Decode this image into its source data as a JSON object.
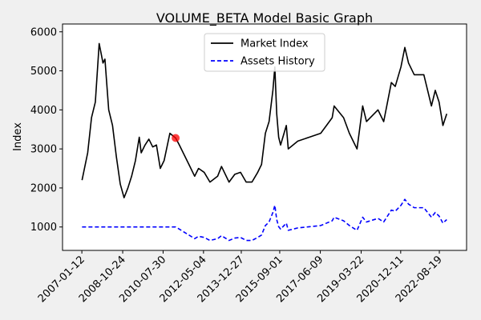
{
  "chart_data": {
    "type": "line",
    "title": "VOLUME_BETA Model Basic Graph",
    "y_label": "Index",
    "x": [
      "2007-01-15",
      "2007-04-15",
      "2007-06-15",
      "2007-08-15",
      "2007-10-15",
      "2007-12-15",
      "2008-01-15",
      "2008-03-15",
      "2008-05-15",
      "2008-07-15",
      "2008-09-15",
      "2008-11-15",
      "2009-01-15",
      "2009-03-15",
      "2009-05-15",
      "2009-07-15",
      "2009-08-15",
      "2009-10-15",
      "2009-12-15",
      "2010-02-15",
      "2010-04-15",
      "2010-06-15",
      "2010-08-15",
      "2010-11-15",
      "2011-02-15",
      "2011-04-15",
      "2011-06-15",
      "2011-09-15",
      "2011-12-15",
      "2012-02-15",
      "2012-05-15",
      "2012-08-15",
      "2012-12-15",
      "2013-02-15",
      "2013-06-15",
      "2013-09-15",
      "2013-12-15",
      "2014-03-15",
      "2014-06-15",
      "2014-09-15",
      "2014-11-15",
      "2015-01-15",
      "2015-03-15",
      "2015-05-15",
      "2015-06-15",
      "2015-07-15",
      "2015-08-15",
      "2015-09-15",
      "2015-12-15",
      "2016-01-15",
      "2016-06-15",
      "2016-12-15",
      "2017-06-15",
      "2017-09-15",
      "2017-12-15",
      "2018-01-15",
      "2018-06-15",
      "2018-09-15",
      "2018-12-15",
      "2019-01-15",
      "2019-04-15",
      "2019-06-15",
      "2019-12-15",
      "2020-03-15",
      "2020-07-15",
      "2020-09-15",
      "2020-12-15",
      "2021-02-15",
      "2021-04-15",
      "2021-07-15",
      "2021-12-15",
      "2022-04-15",
      "2022-06-15",
      "2022-08-15",
      "2022-10-15",
      "2022-12-15"
    ],
    "series": [
      {
        "name": "Market Index",
        "color": "#000000",
        "dash": "solid",
        "values": [
          2200,
          2900,
          3800,
          4200,
          5700,
          5200,
          5300,
          4000,
          3600,
          2800,
          2100,
          1750,
          2000,
          2300,
          2700,
          3300,
          2900,
          3100,
          3250,
          3050,
          3100,
          2500,
          2700,
          3400,
          3280,
          3100,
          2900,
          2600,
          2300,
          2500,
          2400,
          2150,
          2300,
          2550,
          2150,
          2350,
          2400,
          2150,
          2150,
          2400,
          2600,
          3400,
          3700,
          4500,
          5100,
          3900,
          3300,
          3100,
          3600,
          3000,
          3200,
          3300,
          3400,
          3600,
          3800,
          4100,
          3800,
          3400,
          3100,
          3000,
          4100,
          3700,
          4000,
          3700,
          4700,
          4600,
          5100,
          5600,
          5200,
          4900,
          4900,
          4100,
          4500,
          4200,
          3600,
          3900
        ]
      },
      {
        "name": "Assets History",
        "color": "#0000ff",
        "dash": "dashed",
        "values": [
          1000,
          1000,
          1000,
          1000,
          1000,
          1000,
          1000,
          1000,
          1000,
          1000,
          1000,
          1000,
          1000,
          1000,
          1000,
          1000,
          1000,
          1000,
          1000,
          1000,
          1000,
          1000,
          1000,
          1000,
          1000,
          945,
          884,
          793,
          701,
          762,
          732,
          655,
          701,
          777,
          655,
          716,
          732,
          655,
          655,
          732,
          793,
          1037,
          1128,
          1372,
          1555,
          1189,
          1006,
          945,
          1098,
          915,
          976,
          1006,
          1037,
          1098,
          1159,
          1250,
          1159,
          1037,
          945,
          915,
          1250,
          1128,
          1220,
          1128,
          1433,
          1402,
          1555,
          1707,
          1585,
          1494,
          1494,
          1250,
          1372,
          1280,
          1098,
          1189
        ]
      }
    ],
    "highlight": {
      "x": "2011-02-15",
      "value": 3280,
      "color": "#ff0000"
    },
    "xlim": [
      "2006-03-10",
      "2023-10-27"
    ],
    "xticks": [
      "2007-01-12",
      "2008-10-24",
      "2010-07-30",
      "2012-05-04",
      "2013-12-27",
      "2015-09-01",
      "2017-06-09",
      "2019-03-22",
      "2020-12-11",
      "2022-08-19"
    ],
    "ylim": [
      400,
      6200
    ],
    "yticks": [
      1000,
      2000,
      3000,
      4000,
      5000,
      6000
    ],
    "legend": "upper center",
    "grid": false
  }
}
